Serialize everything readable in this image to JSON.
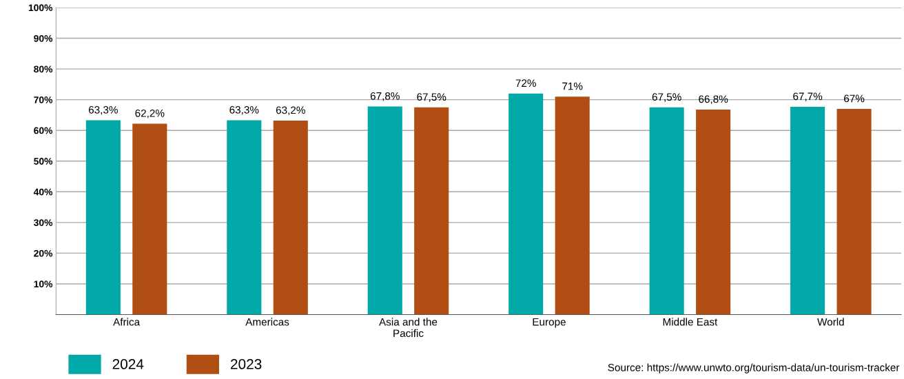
{
  "chart_data": {
    "type": "bar",
    "categories": [
      "Africa",
      "Americas",
      "Asia and the\nPacific",
      "Europe",
      "Middle East",
      "World"
    ],
    "series": [
      {
        "name": "2024",
        "color": "#00a8a8",
        "values": [
          63.3,
          63.3,
          67.8,
          72,
          67.5,
          67.7
        ],
        "value_labels": [
          "63,3%",
          "63,3%",
          "67,8%",
          "72%",
          "67,5%",
          "67,7%"
        ]
      },
      {
        "name": "2023",
        "color": "#b04e14",
        "values": [
          62.2,
          63.2,
          67.5,
          71,
          66.8,
          67
        ],
        "value_labels": [
          "62,2%",
          "63,2%",
          "67,5%",
          "71%",
          "66,8%",
          "67%"
        ]
      }
    ],
    "ylim": [
      0,
      100
    ],
    "yticks": [
      {
        "value": 10,
        "label": "10%"
      },
      {
        "value": 20,
        "label": "20%"
      },
      {
        "value": 30,
        "label": "30%"
      },
      {
        "value": 40,
        "label": "40%"
      },
      {
        "value": 50,
        "label": "50%"
      },
      {
        "value": 60,
        "label": "60%"
      },
      {
        "value": 70,
        "label": "70%"
      },
      {
        "value": 80,
        "label": "80%"
      },
      {
        "value": 90,
        "label": "90%"
      },
      {
        "value": 100,
        "label": "100%"
      }
    ],
    "grid": "y",
    "legend": "bottom left",
    "annotations": [
      "Source: https://www.unwto.org/tourism-data/un-tourism-tracker"
    ]
  }
}
